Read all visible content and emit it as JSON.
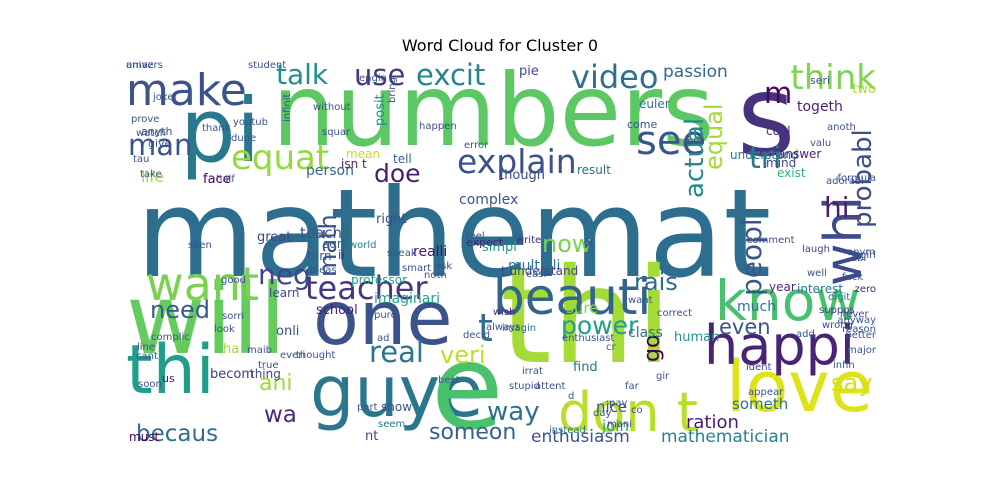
{
  "chart_data": {
    "type": "wordcloud",
    "title": "Word Cloud for Cluster 0",
    "words": [
      {
        "text": "mathemat",
        "color": "#2d6d8e"
      },
      {
        "text": "numbers",
        "color": "#5cc863"
      },
      {
        "text": "thi",
        "color": "#a5db36"
      },
      {
        "text": "s",
        "color": "#46327e"
      },
      {
        "text": "pi",
        "color": "#2a788e"
      },
      {
        "text": "will",
        "color": "#65cb5e"
      },
      {
        "text": "one",
        "color": "#3b528b"
      },
      {
        "text": "guye",
        "color": "#2a768e"
      },
      {
        "text": "thi",
        "color": "#1f9e89"
      },
      {
        "text": "e",
        "color": "#4ac16d"
      },
      {
        "text": "know",
        "color": "#48c16e"
      },
      {
        "text": "love",
        "color": "#dde318"
      },
      {
        "text": "happi",
        "color": "#482475"
      },
      {
        "text": "beauti",
        "color": "#33638d"
      },
      {
        "text": "don t",
        "color": "#b8de29"
      },
      {
        "text": "whi",
        "color": "#3e4a89"
      },
      {
        "text": "make",
        "color": "#3b528b"
      },
      {
        "text": "want",
        "color": "#7ad151"
      },
      {
        "text": "teacher",
        "color": "#453781"
      },
      {
        "text": "see",
        "color": "#39558c"
      },
      {
        "text": "explain",
        "color": "#3b528b"
      },
      {
        "text": "equat",
        "color": "#95d840"
      },
      {
        "text": "think",
        "color": "#7fd34e"
      },
      {
        "text": "use",
        "color": "#453882"
      },
      {
        "text": "excit",
        "color": "#25848e"
      },
      {
        "text": "video",
        "color": "#2d718e"
      },
      {
        "text": "talk",
        "color": "#218f8d"
      },
      {
        "text": "man",
        "color": "#3a548c"
      },
      {
        "text": "t",
        "color": "#2c728e"
      },
      {
        "text": "hi",
        "color": "#481c6e"
      },
      {
        "text": "tri",
        "color": "#2a788e"
      },
      {
        "text": "m",
        "color": "#46085c"
      },
      {
        "text": "probabl",
        "color": "#3e4c8a"
      },
      {
        "text": "peopl",
        "color": "#38588c"
      },
      {
        "text": "actual",
        "color": "#238a8d"
      },
      {
        "text": "equal",
        "color": "#a2da37"
      },
      {
        "text": "neg",
        "color": "#3f4788"
      },
      {
        "text": "math",
        "color": "#3b528b"
      },
      {
        "text": "doe",
        "color": "#481f70"
      },
      {
        "text": "rais",
        "color": "#2f6b8e"
      },
      {
        "text": "power",
        "color": "#1f9e89"
      },
      {
        "text": "need",
        "color": "#375b8d"
      },
      {
        "text": "real",
        "color": "#2a768e"
      },
      {
        "text": "veri",
        "color": "#bddf26"
      },
      {
        "text": "now",
        "color": "#7ad151"
      },
      {
        "text": "x",
        "color": "#3a538b"
      },
      {
        "text": "go",
        "color": "#440154"
      },
      {
        "text": "even",
        "color": "#3b528b"
      },
      {
        "text": "say",
        "color": "#d2e21b"
      },
      {
        "text": "way",
        "color": "#2c728e"
      },
      {
        "text": "ani",
        "color": "#a0da39"
      },
      {
        "text": "wa",
        "color": "#482878"
      },
      {
        "text": "becaus",
        "color": "#2f6c8e"
      },
      {
        "text": "someon",
        "color": "#33638d"
      },
      {
        "text": "passion",
        "color": "#31688e"
      },
      {
        "text": "pie",
        "color": "#414487"
      },
      {
        "text": "two",
        "color": "#a8db34"
      },
      {
        "text": "togeth",
        "color": "#482374"
      },
      {
        "text": "someth",
        "color": "#2c718e"
      },
      {
        "text": "enthusiasm",
        "color": "#3b528b"
      },
      {
        "text": "ration",
        "color": "#481b6d"
      },
      {
        "text": "join",
        "color": "#1f9e89"
      },
      {
        "text": "nt",
        "color": "#3f4889"
      },
      {
        "text": "mathematician",
        "color": "#26818e"
      },
      {
        "text": "find",
        "color": "#2d708e"
      },
      {
        "text": "nice",
        "color": "#38598c"
      },
      {
        "text": "class",
        "color": "#2c738e"
      },
      {
        "text": "human",
        "color": "#21918c"
      },
      {
        "text": "much",
        "color": "#2a778e"
      },
      {
        "text": "sure",
        "color": "#86d549"
      },
      {
        "text": "teach",
        "color": "#3b528b"
      },
      {
        "text": "right",
        "color": "#3d4e8a"
      },
      {
        "text": "realli",
        "color": "#481467"
      },
      {
        "text": "great",
        "color": "#3e4989"
      },
      {
        "text": "person",
        "color": "#31688e"
      },
      {
        "text": "life",
        "color": "#a0da39"
      },
      {
        "text": "face",
        "color": "#440154"
      },
      {
        "text": "posit",
        "color": "#20928c"
      },
      {
        "text": "mean",
        "color": "#c0df25"
      },
      {
        "text": "isn t",
        "color": "#482575"
      },
      {
        "text": "tell",
        "color": "#33638d"
      },
      {
        "text": "result",
        "color": "#2e6e8e"
      },
      {
        "text": "exist",
        "color": "#2fb47c"
      },
      {
        "text": "understand",
        "color": "#2c728e"
      },
      {
        "text": "mind",
        "color": "#3e4a89"
      },
      {
        "text": "cool",
        "color": "#46327e"
      },
      {
        "text": "answer",
        "color": "#482677"
      },
      {
        "text": "euler",
        "color": "#2b758e"
      },
      {
        "text": "complex",
        "color": "#3b528b"
      },
      {
        "text": "simpl",
        "color": "#1f958b"
      },
      {
        "text": "multipli",
        "color": "#2a768e"
      },
      {
        "text": "expect",
        "color": "#482273"
      },
      {
        "text": "professor",
        "color": "#1fa188"
      },
      {
        "text": "interest",
        "color": "#2a788e"
      },
      {
        "text": "year",
        "color": "#472c7a"
      },
      {
        "text": "imaginari",
        "color": "#21a685"
      },
      {
        "text": "onli",
        "color": "#3b528b"
      },
      {
        "text": "becom",
        "color": "#453781"
      },
      {
        "text": "school",
        "color": "#482173"
      },
      {
        "text": "learn",
        "color": "#3e4989"
      },
      {
        "text": "thing",
        "color": "#3f4788"
      },
      {
        "text": "ha",
        "color": "#a2da37"
      },
      {
        "text": "us",
        "color": "#481a6c"
      },
      {
        "text": "must",
        "color": "#440154"
      },
      {
        "text": "seem",
        "color": "#2a788e"
      },
      {
        "text": "show",
        "color": "#3b528b"
      },
      {
        "text": "sqrt",
        "color": "#355e8d"
      },
      {
        "text": "ii",
        "color": "#482878"
      },
      {
        "text": "world",
        "color": "#277f8e"
      },
      {
        "text": "turn",
        "color": "#3a548c"
      },
      {
        "text": "though",
        "color": "#3e4a89"
      },
      {
        "text": "t understand",
        "color": "#414487"
      },
      {
        "text": "feel",
        "color": "#3a548c"
      },
      {
        "text": "ask",
        "color": "#3f4889"
      },
      {
        "text": "write",
        "color": "#482475"
      },
      {
        "text": "imagin",
        "color": "#2d708e"
      },
      {
        "text": "comment",
        "color": "#3d4e8a"
      },
      {
        "text": "laugh",
        "color": "#414487"
      },
      {
        "text": "well",
        "color": "#3b528b"
      },
      {
        "text": "digit",
        "color": "#2e6e8e"
      },
      {
        "text": "abl",
        "color": "#3b528b"
      },
      {
        "text": "zero",
        "color": "#482677"
      },
      {
        "text": "fuck",
        "color": "#3b528b"
      },
      {
        "text": "suppos",
        "color": "#453882"
      },
      {
        "text": "wrong",
        "color": "#3e4a89"
      },
      {
        "text": "add",
        "color": "#3a548c"
      },
      {
        "text": "infin",
        "color": "#3b528b"
      },
      {
        "text": "ident",
        "color": "#3f4788"
      },
      {
        "text": "far",
        "color": "#3b528b"
      },
      {
        "text": "pay",
        "color": "#3b528b"
      },
      {
        "text": "day",
        "color": "#3b528b"
      },
      {
        "text": "co",
        "color": "#3b528b"
      },
      {
        "text": "mani",
        "color": "#3f4788"
      },
      {
        "text": "instead",
        "color": "#2c728e"
      },
      {
        "text": "wish",
        "color": "#482878"
      },
      {
        "text": "always",
        "color": "#3b528b"
      },
      {
        "text": "stupid",
        "color": "#3b528b"
      },
      {
        "text": "attent",
        "color": "#3b528b"
      },
      {
        "text": "seri",
        "color": "#3b528b"
      },
      {
        "text": "student",
        "color": "#3b528b"
      },
      {
        "text": "prove",
        "color": "#3b528b"
      },
      {
        "text": "joke",
        "color": "#3b528b"
      },
      {
        "text": "anyth",
        "color": "#3b528b"
      },
      {
        "text": "give",
        "color": "#3b528b"
      },
      {
        "text": "watch",
        "color": "#3b528b"
      },
      {
        "text": "youtub",
        "color": "#3b528b"
      },
      {
        "text": "thank",
        "color": "#3b528b"
      },
      {
        "text": "dude",
        "color": "#3b528b"
      },
      {
        "text": "without",
        "color": "#3b528b"
      },
      {
        "text": "come",
        "color": "#3b528b"
      },
      {
        "text": "put",
        "color": "#3b528b"
      },
      {
        "text": "valu",
        "color": "#3b528b"
      },
      {
        "text": "anoth",
        "color": "#3b528b"
      },
      {
        "text": "half",
        "color": "#3b528b"
      },
      {
        "text": "tau",
        "color": "#3b528b"
      },
      {
        "text": "take",
        "color": "#3b528b"
      },
      {
        "text": "bring",
        "color": "#3b528b"
      },
      {
        "text": "error",
        "color": "#3b528b"
      },
      {
        "text": "line",
        "color": "#3b528b"
      },
      {
        "text": "complic",
        "color": "#3b528b"
      },
      {
        "text": "everi",
        "color": "#3b528b"
      },
      {
        "text": "thought",
        "color": "#3b528b"
      },
      {
        "text": "pleas",
        "color": "#3b528b"
      },
      {
        "text": "good",
        "color": "#3b528b"
      },
      {
        "text": "look",
        "color": "#3b528b"
      },
      {
        "text": "sorri",
        "color": "#3b528b"
      },
      {
        "text": "maib",
        "color": "#3b528b"
      },
      {
        "text": "true",
        "color": "#3b528b"
      },
      {
        "text": "pure",
        "color": "#3b528b"
      },
      {
        "text": "ad",
        "color": "#3b528b"
      },
      {
        "text": "d",
        "color": "#3b528b"
      },
      {
        "text": "best",
        "color": "#3b528b"
      },
      {
        "text": "smart",
        "color": "#3b528b"
      },
      {
        "text": "noth",
        "color": "#3b528b"
      },
      {
        "text": "speak",
        "color": "#3b528b"
      },
      {
        "text": "decid",
        "color": "#3b528b"
      },
      {
        "text": "soon",
        "color": "#3b528b"
      },
      {
        "text": "gir",
        "color": "#3b528b"
      },
      {
        "text": "appear",
        "color": "#3b528b"
      },
      {
        "text": "adorabl",
        "color": "#3b528b"
      },
      {
        "text": "formula",
        "color": "#3b528b"
      },
      {
        "text": "anym",
        "color": "#3b528b"
      },
      {
        "text": "girl",
        "color": "#3b528b"
      },
      {
        "text": "never",
        "color": "#3b528b"
      },
      {
        "text": "reason",
        "color": "#3b528b"
      },
      {
        "text": "major",
        "color": "#3b528b"
      },
      {
        "text": "better",
        "color": "#3b528b"
      },
      {
        "text": "anyway",
        "color": "#3b528b"
      },
      {
        "text": "cant",
        "color": "#3b528b"
      },
      {
        "text": "infinit",
        "color": "#3b528b"
      },
      {
        "text": "squar",
        "color": "#3b528b"
      },
      {
        "text": "happen",
        "color": "#3b528b"
      },
      {
        "text": "engin",
        "color": "#3b528b"
      },
      {
        "text": "part",
        "color": "#3b528b"
      },
      {
        "text": "seen",
        "color": "#3b528b"
      },
      {
        "text": "easi",
        "color": "#3b528b"
      },
      {
        "text": "irrat",
        "color": "#3b528b"
      },
      {
        "text": "want",
        "color": "#3b528b"
      },
      {
        "text": "correct",
        "color": "#3b528b"
      },
      {
        "text": "cr",
        "color": "#3b528b"
      },
      {
        "text": "enthusiast",
        "color": "#3b528b"
      },
      {
        "text": "amaz",
        "color": "#3b528b"
      },
      {
        "text": "univers",
        "color": "#3b528b"
      }
    ]
  }
}
